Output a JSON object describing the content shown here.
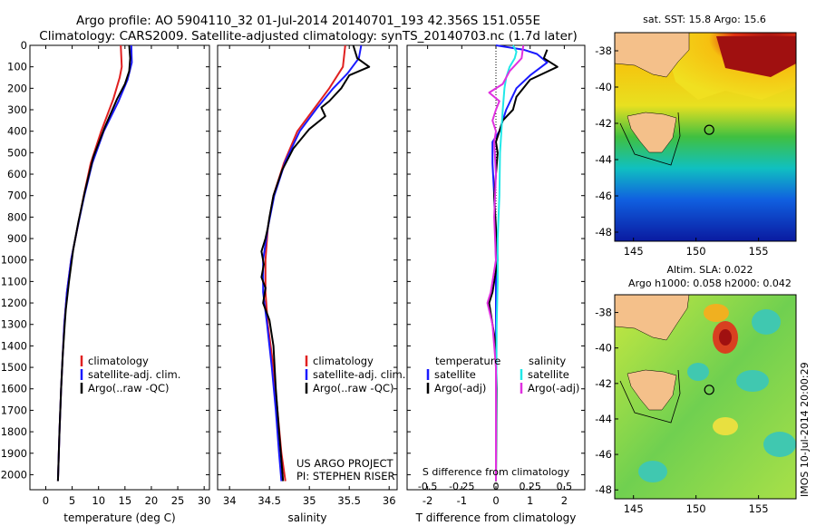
{
  "header": {
    "line1": "Argo profile: AO 5904110_32 01-Jul-2014 20140701_193 42.356S 151.055E",
    "line2": "Climatology: CARS2009. Satellite-adjusted climatology: synTS_20140703.nc (1.7d later)"
  },
  "colors": {
    "red": "#e02020",
    "blue": "#1a1aff",
    "black": "#000000",
    "cyan": "#20e8e8",
    "magenta": "#e030e0",
    "land": "#f4c08a"
  },
  "chart_data": [
    {
      "type": "line",
      "id": "temperature",
      "xlabel": "temperature (deg C)",
      "xlim": [
        -3,
        31
      ],
      "xticks": [
        0,
        5,
        10,
        15,
        20,
        25,
        30
      ],
      "ylim": [
        0,
        2070
      ],
      "yticks": [
        0,
        100,
        200,
        300,
        400,
        500,
        600,
        700,
        800,
        900,
        1000,
        1100,
        1200,
        1300,
        1400,
        1500,
        1600,
        1700,
        1800,
        1900,
        2000
      ],
      "legend": [
        "climatology",
        "satellite-adj. clim.",
        "Argo(..raw -QC)"
      ],
      "series": [
        {
          "name": "climatology",
          "color": "red",
          "points": [
            [
              14.2,
              0
            ],
            [
              14.4,
              100
            ],
            [
              14.0,
              150
            ],
            [
              12.8,
              250
            ],
            [
              10.5,
              400
            ],
            [
              8.5,
              550
            ],
            [
              7.2,
              700
            ],
            [
              6.0,
              850
            ],
            [
              4.8,
              1000
            ],
            [
              4.0,
              1150
            ],
            [
              3.5,
              1300
            ],
            [
              3.2,
              1450
            ],
            [
              2.9,
              1600
            ],
            [
              2.6,
              1800
            ],
            [
              2.3,
              2030
            ]
          ]
        },
        {
          "name": "satellite-adj. clim.",
          "color": "blue",
          "points": [
            [
              16.2,
              0
            ],
            [
              16.3,
              80
            ],
            [
              15.5,
              160
            ],
            [
              13.8,
              260
            ],
            [
              11.0,
              400
            ],
            [
              8.8,
              550
            ],
            [
              7.3,
              700
            ],
            [
              6.0,
              850
            ],
            [
              4.8,
              1000
            ],
            [
              4.0,
              1150
            ],
            [
              3.5,
              1300
            ],
            [
              3.2,
              1450
            ],
            [
              2.9,
              1600
            ],
            [
              2.6,
              1800
            ],
            [
              2.3,
              2030
            ]
          ]
        },
        {
          "name": "Argo(..raw -QC)",
          "color": "black",
          "points": [
            [
              15.8,
              0
            ],
            [
              16.0,
              60
            ],
            [
              15.8,
              120
            ],
            [
              15.0,
              180
            ],
            [
              13.5,
              250
            ],
            [
              11.2,
              380
            ],
            [
              9.0,
              520
            ],
            [
              7.4,
              680
            ],
            [
              6.2,
              820
            ],
            [
              5.2,
              950
            ],
            [
              4.4,
              1100
            ],
            [
              3.8,
              1230
            ],
            [
              3.6,
              1300
            ],
            [
              3.2,
              1450
            ],
            [
              2.9,
              1600
            ],
            [
              2.6,
              1800
            ],
            [
              2.3,
              2030
            ]
          ]
        }
      ]
    },
    {
      "type": "line",
      "id": "salinity",
      "xlabel": "salinity",
      "xlim": [
        33.85,
        36.1
      ],
      "xticks": [
        34,
        34.5,
        35,
        35.5,
        36
      ],
      "ylim": [
        0,
        2070
      ],
      "legend": [
        "climatology",
        "satellite-adj. clim.",
        "Argo(..raw -QC)"
      ],
      "annotation": [
        "US ARGO PROJECT",
        "PI: STEPHEN RISER"
      ],
      "series": [
        {
          "name": "climatology",
          "color": "red",
          "points": [
            [
              35.45,
              0
            ],
            [
              35.42,
              100
            ],
            [
              35.25,
              200
            ],
            [
              35.05,
              300
            ],
            [
              34.85,
              400
            ],
            [
              34.68,
              550
            ],
            [
              34.55,
              700
            ],
            [
              34.48,
              850
            ],
            [
              34.45,
              1000
            ],
            [
              34.45,
              1150
            ],
            [
              34.48,
              1300
            ],
            [
              34.55,
              1500
            ],
            [
              34.6,
              1700
            ],
            [
              34.65,
              1900
            ],
            [
              34.7,
              2030
            ]
          ]
        },
        {
          "name": "satellite-adj. clim.",
          "color": "blue",
          "points": [
            [
              35.65,
              0
            ],
            [
              35.62,
              60
            ],
            [
              35.48,
              130
            ],
            [
              35.3,
              200
            ],
            [
              35.1,
              290
            ],
            [
              34.88,
              400
            ],
            [
              34.7,
              540
            ],
            [
              34.56,
              700
            ],
            [
              34.48,
              850
            ],
            [
              34.42,
              1000
            ],
            [
              34.42,
              1150
            ],
            [
              34.47,
              1300
            ],
            [
              34.53,
              1500
            ],
            [
              34.58,
              1700
            ],
            [
              34.62,
              1900
            ],
            [
              34.65,
              2030
            ]
          ]
        },
        {
          "name": "Argo(..raw -QC)",
          "color": "black",
          "points": [
            [
              35.55,
              0
            ],
            [
              35.6,
              60
            ],
            [
              35.75,
              100
            ],
            [
              35.5,
              140
            ],
            [
              35.4,
              200
            ],
            [
              35.25,
              260
            ],
            [
              35.15,
              290
            ],
            [
              35.2,
              330
            ],
            [
              35.0,
              390
            ],
            [
              34.8,
              480
            ],
            [
              34.66,
              580
            ],
            [
              34.55,
              700
            ],
            [
              34.5,
              800
            ],
            [
              34.48,
              850
            ],
            [
              34.45,
              900
            ],
            [
              34.4,
              960
            ],
            [
              34.43,
              1020
            ],
            [
              34.4,
              1080
            ],
            [
              34.45,
              1130
            ],
            [
              34.42,
              1200
            ],
            [
              34.5,
              1280
            ],
            [
              34.55,
              1400
            ],
            [
              34.58,
              1600
            ],
            [
              34.62,
              1800
            ],
            [
              34.67,
              2030
            ]
          ]
        }
      ]
    },
    {
      "type": "line",
      "id": "difference",
      "xlabel": "T difference from climatology",
      "xlabel2": "S difference from climatology",
      "xlim": [
        -2.6,
        2.6
      ],
      "xticks": [
        -2,
        -1,
        0,
        1,
        2
      ],
      "xticks_s": [
        "-0.5",
        "-0.25",
        "0",
        "0.25",
        "0.5"
      ],
      "ylim": [
        0,
        2070
      ],
      "legend_t": {
        "title": "temperature",
        "items": [
          "satellite",
          "Argo(-adj)"
        ]
      },
      "legend_s": {
        "title": "salinity",
        "items": [
          "satellite",
          "Argo(-adj)"
        ]
      },
      "series": [
        {
          "name": "T satellite",
          "color": "blue",
          "points": [
            [
              0,
              0
            ],
            [
              0.8,
              20
            ],
            [
              1.2,
              40
            ],
            [
              1.5,
              80
            ],
            [
              1.0,
              140
            ],
            [
              0.6,
              200
            ],
            [
              0.3,
              300
            ],
            [
              0.1,
              400
            ],
            [
              -0.1,
              450
            ],
            [
              -0.1,
              550
            ],
            [
              -0.05,
              700
            ],
            [
              0,
              1000
            ],
            [
              0,
              2030
            ]
          ]
        },
        {
          "name": "T Argo(-adj)",
          "color": "black",
          "points": [
            [
              1.5,
              20
            ],
            [
              1.4,
              60
            ],
            [
              1.8,
              100
            ],
            [
              1.0,
              160
            ],
            [
              0.6,
              240
            ],
            [
              0.5,
              300
            ],
            [
              0.2,
              350
            ],
            [
              0.1,
              400
            ],
            [
              0.0,
              450
            ],
            [
              0.05,
              500
            ],
            [
              -0.05,
              700
            ],
            [
              0.0,
              850
            ],
            [
              0.05,
              1000
            ],
            [
              -0.1,
              1150
            ],
            [
              -0.2,
              1200
            ],
            [
              -0.1,
              1300
            ],
            [
              0.0,
              1400
            ],
            [
              0.02,
              1600
            ],
            [
              0.0,
              2030
            ]
          ]
        },
        {
          "name": "S satellite",
          "color": "cyan",
          "points": [
            [
              0.5,
              0
            ],
            [
              0.6,
              30
            ],
            [
              0.55,
              60
            ],
            [
              0.4,
              100
            ],
            [
              0.3,
              150
            ],
            [
              0.25,
              200
            ],
            [
              0.2,
              300
            ],
            [
              0.12,
              500
            ],
            [
              0.1,
              700
            ],
            [
              0.05,
              900
            ],
            [
              0.05,
              1100
            ],
            [
              0.02,
              1300
            ],
            [
              0.01,
              1600
            ],
            [
              0.0,
              2030
            ]
          ]
        },
        {
          "name": "S Argo(-adj)",
          "color": "magenta",
          "points": [
            [
              0.8,
              0
            ],
            [
              0.75,
              60
            ],
            [
              0.4,
              120
            ],
            [
              0.2,
              180
            ],
            [
              -0.2,
              220
            ],
            [
              0.1,
              260
            ],
            [
              0.0,
              300
            ],
            [
              -0.1,
              350
            ],
            [
              0.0,
              400
            ],
            [
              -0.05,
              450
            ],
            [
              0.0,
              600
            ],
            [
              -0.05,
              800
            ],
            [
              0.0,
              1000
            ],
            [
              -0.15,
              1150
            ],
            [
              -0.25,
              1200
            ],
            [
              -0.1,
              1300
            ],
            [
              0.0,
              1500
            ],
            [
              0.0,
              2030
            ]
          ]
        }
      ]
    },
    {
      "type": "heatmap",
      "id": "sst_map",
      "title": "sat. SST: 15.8 Argo: 15.6",
      "xticks": [
        "145",
        "150",
        "155"
      ],
      "yticks": [
        "-38",
        "-40",
        "-42",
        "-44",
        "-46",
        "-48"
      ],
      "lon_range": [
        143.5,
        158
      ],
      "lat_range": [
        -48.5,
        -37
      ],
      "argo_position": [
        151.055,
        -42.356
      ]
    },
    {
      "type": "heatmap",
      "id": "sla_map",
      "title_line1": "Altim. SLA: 0.022",
      "title_line2": "Argo h1000: 0.058 h2000: 0.042",
      "xticks": [
        "145",
        "150",
        "155"
      ],
      "yticks": [
        "-38",
        "-40",
        "-42",
        "-44",
        "-46",
        "-48"
      ],
      "lon_range": [
        143.5,
        158
      ],
      "lat_range": [
        -48.5,
        -37
      ],
      "argo_position": [
        151.055,
        -42.356
      ],
      "side_label": "IMOS 10-Jul-2014 20:00:29"
    }
  ]
}
